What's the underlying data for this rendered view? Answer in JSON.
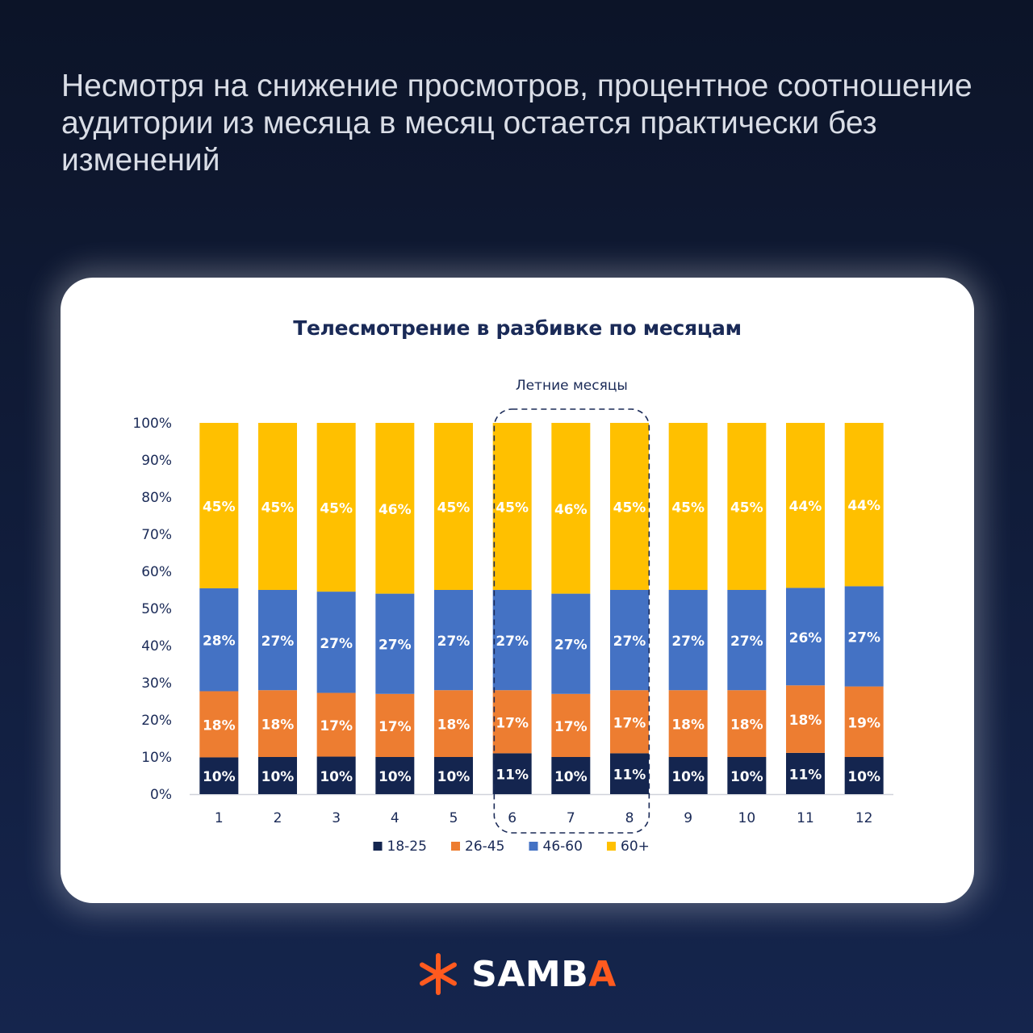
{
  "headline": "Несмотря на снижение просмотров, процентное соотношение аудитории из месяца в месяц остается практически без изменений",
  "brand": {
    "name_main": "SAMB",
    "name_accent": "A",
    "icon": "asterisk-logo-icon",
    "accent_color": "#ff5a1f"
  },
  "chart_data": {
    "type": "bar",
    "stacked": true,
    "title": "Телесмотрение в разбивке по месяцам",
    "annotation": "Летние месяцы",
    "annotation_categories": [
      "6",
      "7",
      "8"
    ],
    "categories": [
      "1",
      "2",
      "3",
      "4",
      "5",
      "6",
      "7",
      "8",
      "9",
      "10",
      "11",
      "12"
    ],
    "ylim": [
      0,
      100
    ],
    "yticks": [
      "0%",
      "10%",
      "20%",
      "30%",
      "40%",
      "50%",
      "60%",
      "70%",
      "80%",
      "90%",
      "100%"
    ],
    "legend_position": "bottom",
    "series": [
      {
        "name": "18-25",
        "color": "#14254f",
        "values": [
          10,
          10,
          10,
          10,
          10,
          11,
          10,
          11,
          10,
          10,
          11,
          10
        ]
      },
      {
        "name": "26-45",
        "color": "#ed7d31",
        "values": [
          18,
          18,
          17,
          17,
          18,
          17,
          17,
          17,
          18,
          18,
          18,
          19
        ]
      },
      {
        "name": "46-60",
        "color": "#4472c4",
        "values": [
          28,
          27,
          27,
          27,
          27,
          27,
          27,
          27,
          27,
          27,
          26,
          27
        ]
      },
      {
        "name": "60+",
        "color": "#ffc000",
        "values": [
          45,
          45,
          45,
          46,
          45,
          45,
          46,
          45,
          45,
          45,
          44,
          44
        ]
      }
    ]
  }
}
